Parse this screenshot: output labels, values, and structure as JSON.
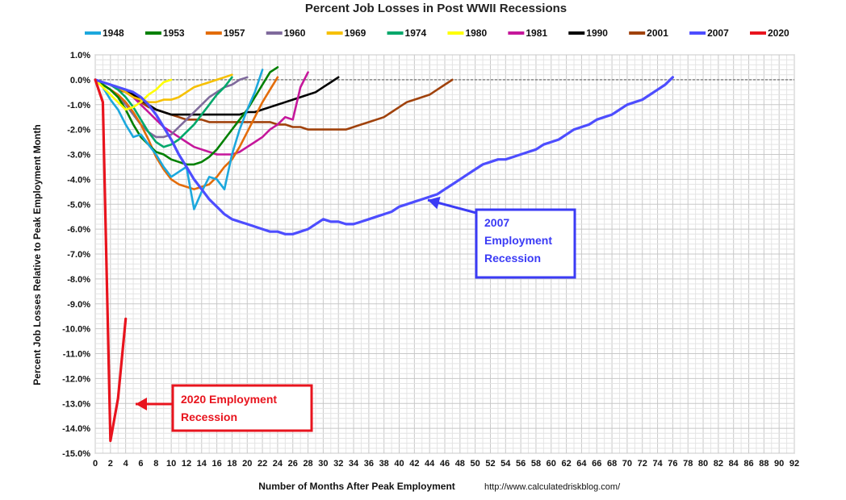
{
  "chart_data": {
    "type": "line",
    "title": "Percent Job Losses in Post WWII Recessions",
    "xlabel": "Number of Months After Peak Employment",
    "ylabel": "Percent Job Losses Relative to Peak Employment Month",
    "source": "http://www.calculatedriskblog.com/",
    "xlim": [
      0,
      92
    ],
    "ylim": [
      -15,
      1
    ],
    "x_ticks": [
      "0",
      "2",
      "4",
      "6",
      "8",
      "10",
      "12",
      "14",
      "16",
      "18",
      "20",
      "22",
      "24",
      "26",
      "28",
      "30",
      "32",
      "34",
      "36",
      "38",
      "40",
      "42",
      "44",
      "46",
      "48",
      "50",
      "52",
      "54",
      "56",
      "58",
      "60",
      "62",
      "64",
      "66",
      "68",
      "70",
      "72",
      "74",
      "76",
      "78",
      "80",
      "82",
      "84",
      "86",
      "88",
      "90",
      "92"
    ],
    "y_ticks": [
      "1.0%",
      "0.0%",
      "-1.0%",
      "-2.0%",
      "-3.0%",
      "-4.0%",
      "-5.0%",
      "-6.0%",
      "-7.0%",
      "-8.0%",
      "-9.0%",
      "-10.0%",
      "-11.0%",
      "-12.0%",
      "-13.0%",
      "-14.0%",
      "-15.0%"
    ],
    "grid": true,
    "legend_position": "top",
    "series": [
      {
        "name": "1948",
        "color": "#1ca8dd",
        "values": [
          0,
          -0.3,
          -0.8,
          -1.2,
          -1.8,
          -2.3,
          -2.2,
          -2.6,
          -3.0,
          -3.5,
          -3.9,
          -3.7,
          -3.5,
          -5.2,
          -4.5,
          -3.9,
          -4.0,
          -4.4,
          -3.0,
          -2.0,
          -1.2,
          -0.5,
          0.4
        ]
      },
      {
        "name": "1953",
        "color": "#008000",
        "values": [
          0,
          -0.2,
          -0.4,
          -0.7,
          -1.2,
          -1.8,
          -2.3,
          -2.6,
          -2.9,
          -3.0,
          -3.2,
          -3.3,
          -3.4,
          -3.4,
          -3.3,
          -3.1,
          -2.8,
          -2.4,
          -2.0,
          -1.6,
          -1.2,
          -0.7,
          -0.2,
          0.3,
          0.5
        ]
      },
      {
        "name": "1957",
        "color": "#e36c09",
        "values": [
          0,
          -0.2,
          -0.4,
          -0.6,
          -0.9,
          -1.3,
          -1.8,
          -2.4,
          -3.1,
          -3.6,
          -4.0,
          -4.2,
          -4.3,
          -4.4,
          -4.3,
          -4.2,
          -3.9,
          -3.5,
          -3.2,
          -2.7,
          -2.1,
          -1.5,
          -0.9,
          -0.4,
          0.1
        ]
      },
      {
        "name": "1960",
        "color": "#7f6a9c",
        "values": [
          0,
          -0.2,
          -0.4,
          -0.7,
          -1.0,
          -1.4,
          -1.8,
          -2.1,
          -2.3,
          -2.3,
          -2.2,
          -1.9,
          -1.6,
          -1.3,
          -1.0,
          -0.7,
          -0.5,
          -0.3,
          -0.2,
          0,
          0.1
        ]
      },
      {
        "name": "1969",
        "color": "#f6c000",
        "values": [
          0,
          -0.1,
          -0.2,
          -0.3,
          -0.5,
          -0.7,
          -0.8,
          -0.9,
          -0.9,
          -0.8,
          -0.8,
          -0.7,
          -0.5,
          -0.3,
          -0.2,
          -0.1,
          0,
          0.1,
          0.2
        ]
      },
      {
        "name": "1974",
        "color": "#00a86b",
        "values": [
          0,
          -0.1,
          -0.2,
          -0.4,
          -0.7,
          -1.1,
          -1.6,
          -2.1,
          -2.5,
          -2.7,
          -2.6,
          -2.4,
          -2.1,
          -1.8,
          -1.4,
          -1.0,
          -0.6,
          -0.3,
          0.1
        ]
      },
      {
        "name": "1980",
        "color": "#ffff00",
        "values": [
          0,
          -0.3,
          -0.6,
          -0.9,
          -1.2,
          -1.1,
          -0.9,
          -0.6,
          -0.4,
          -0.1,
          0.0
        ]
      },
      {
        "name": "1981",
        "color": "#c5179b",
        "values": [
          0,
          -0.1,
          -0.2,
          -0.3,
          -0.5,
          -0.7,
          -1.0,
          -1.3,
          -1.6,
          -1.9,
          -2.1,
          -2.3,
          -2.5,
          -2.7,
          -2.8,
          -2.9,
          -3.0,
          -3.0,
          -3.0,
          -2.9,
          -2.7,
          -2.5,
          -2.3,
          -2.0,
          -1.8,
          -1.5,
          -1.6,
          -0.3,
          0.3
        ]
      },
      {
        "name": "1990",
        "color": "#000000",
        "values": [
          0,
          -0.1,
          -0.2,
          -0.3,
          -0.4,
          -0.6,
          -0.8,
          -1.0,
          -1.2,
          -1.3,
          -1.4,
          -1.4,
          -1.4,
          -1.4,
          -1.4,
          -1.4,
          -1.4,
          -1.4,
          -1.4,
          -1.4,
          -1.3,
          -1.3,
          -1.2,
          -1.1,
          -1.0,
          -0.9,
          -0.8,
          -0.7,
          -0.6,
          -0.5,
          -0.3,
          -0.1,
          0.1
        ]
      },
      {
        "name": "2001",
        "color": "#a0420c",
        "values": [
          0,
          -0.1,
          -0.2,
          -0.4,
          -0.5,
          -0.7,
          -0.9,
          -1.1,
          -1.2,
          -1.3,
          -1.4,
          -1.5,
          -1.6,
          -1.6,
          -1.6,
          -1.7,
          -1.7,
          -1.7,
          -1.7,
          -1.7,
          -1.7,
          -1.7,
          -1.7,
          -1.7,
          -1.8,
          -1.8,
          -1.9,
          -1.9,
          -2.0,
          -2.0,
          -2.0,
          -2.0,
          -2.0,
          -2.0,
          -1.9,
          -1.8,
          -1.7,
          -1.6,
          -1.5,
          -1.3,
          -1.1,
          -0.9,
          -0.8,
          -0.7,
          -0.6,
          -0.4,
          -0.2,
          0.0
        ]
      },
      {
        "name": "2007",
        "color": "#4d4dff",
        "values": [
          0,
          -0.1,
          -0.2,
          -0.3,
          -0.4,
          -0.5,
          -0.7,
          -1.0,
          -1.4,
          -1.9,
          -2.4,
          -3.0,
          -3.5,
          -4.0,
          -4.4,
          -4.8,
          -5.1,
          -5.4,
          -5.6,
          -5.7,
          -5.8,
          -5.9,
          -6.0,
          -6.1,
          -6.1,
          -6.2,
          -6.2,
          -6.1,
          -6.0,
          -5.8,
          -5.6,
          -5.7,
          -5.7,
          -5.8,
          -5.8,
          -5.7,
          -5.6,
          -5.5,
          -5.4,
          -5.3,
          -5.1,
          -5.0,
          -4.9,
          -4.8,
          -4.7,
          -4.6,
          -4.4,
          -4.2,
          -4.0,
          -3.8,
          -3.6,
          -3.4,
          -3.3,
          -3.2,
          -3.2,
          -3.1,
          -3.0,
          -2.9,
          -2.8,
          -2.6,
          -2.5,
          -2.4,
          -2.2,
          -2.0,
          -1.9,
          -1.8,
          -1.6,
          -1.5,
          -1.4,
          -1.2,
          -1.0,
          -0.9,
          -0.8,
          -0.6,
          -0.4,
          -0.2,
          0.1
        ]
      },
      {
        "name": "2020",
        "color": "#e8141e",
        "values": [
          0,
          -0.9,
          -14.5,
          -12.8,
          -9.6
        ]
      }
    ],
    "annotations": [
      {
        "lines": [
          "2007",
          "Employment",
          "Recession"
        ],
        "color": "#3b3bf5"
      },
      {
        "lines": [
          "2020 Employment",
          "Recession"
        ],
        "color": "#e8141e"
      }
    ]
  }
}
